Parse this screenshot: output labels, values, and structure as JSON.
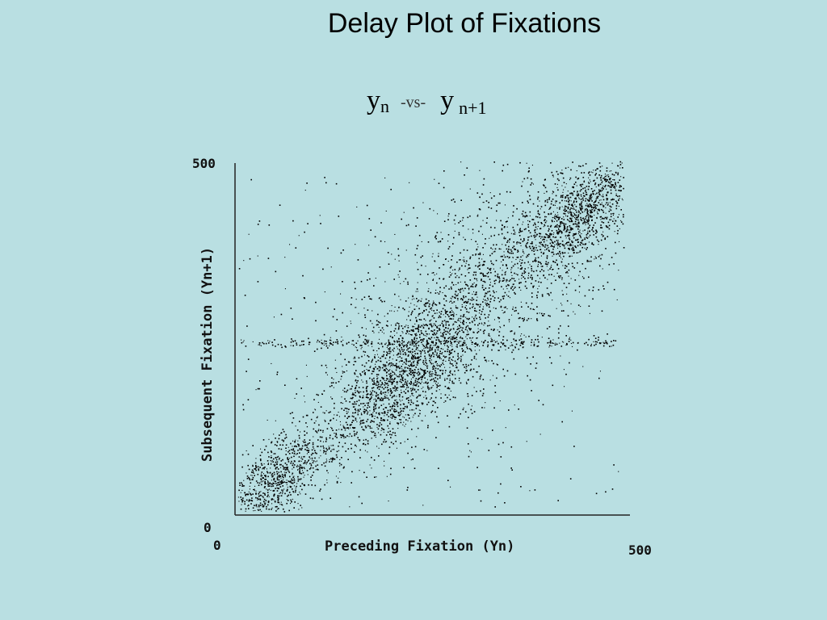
{
  "slide": {
    "title": "Delay Plot of Fixations",
    "subtitle_left": "y",
    "subtitle_left_sub": "n",
    "subtitle_vs": "-vs-",
    "subtitle_right": "y",
    "subtitle_right_sub": "n+1"
  },
  "chart_data": {
    "type": "scatter",
    "xlabel": "Preceding Fixation (Yn)",
    "ylabel": "Subsequent Fixation (Yn+1)",
    "xlim": [
      0,
      500
    ],
    "ylim": [
      0,
      500
    ],
    "x_ticks": [
      "0",
      "500"
    ],
    "y_ticks": [
      "0",
      "500"
    ],
    "grid": false,
    "legend": "none",
    "point_color": "#000000",
    "clusters": [
      {
        "x": 50,
        "y": 50,
        "spread": 35,
        "weight": 0.16
      },
      {
        "x": 195,
        "y": 170,
        "spread": 45,
        "weight": 0.18
      },
      {
        "x": 245,
        "y": 240,
        "spread": 45,
        "weight": 0.16
      },
      {
        "x": 440,
        "y": 430,
        "spread": 38,
        "weight": 0.2
      },
      {
        "x": 330,
        "y": 330,
        "spread": 95,
        "weight": 0.3
      }
    ],
    "horizontal_band": {
      "y": 245,
      "x_range": [
        5,
        490
      ]
    },
    "approx_point_count": 5200
  }
}
